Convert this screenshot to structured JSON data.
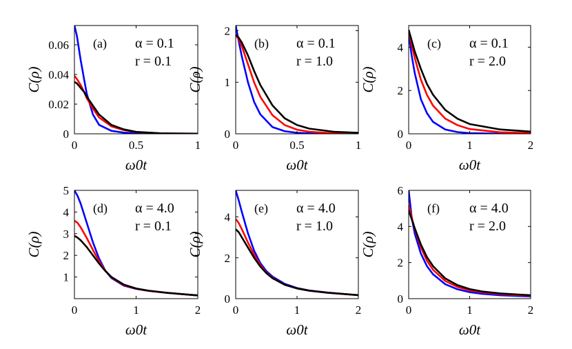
{
  "chart_data": [
    {
      "panel": "(a)",
      "type": "line",
      "params": [
        "α = 0.1",
        "r = 0.1"
      ],
      "xlabel": "ω0t",
      "ylabel": "C(ρ)",
      "xlim": [
        0,
        1
      ],
      "ylim": [
        0,
        0.073
      ],
      "xticks": [
        0,
        0.5,
        1
      ],
      "yticks": [
        0,
        0.02,
        0.04,
        0.06
      ],
      "series": [
        {
          "color": "#0000ff",
          "x": [
            0,
            0.02,
            0.05,
            0.08,
            0.1,
            0.15,
            0.2,
            0.3,
            0.4,
            0.5,
            0.7,
            1
          ],
          "y": [
            0.073,
            0.066,
            0.05,
            0.036,
            0.027,
            0.013,
            0.006,
            0.002,
            0.0008,
            0.0003,
            0.0001,
            0
          ]
        },
        {
          "color": "#ff0000",
          "x": [
            0,
            0.02,
            0.05,
            0.08,
            0.1,
            0.15,
            0.2,
            0.3,
            0.4,
            0.5,
            0.7,
            1
          ],
          "y": [
            0.039,
            0.037,
            0.033,
            0.028,
            0.024,
            0.017,
            0.011,
            0.005,
            0.0025,
            0.0012,
            0.0003,
            0.0001
          ]
        },
        {
          "color": "#000000",
          "x": [
            0,
            0.02,
            0.05,
            0.08,
            0.1,
            0.15,
            0.2,
            0.3,
            0.4,
            0.5,
            0.7,
            1
          ],
          "y": [
            0.035,
            0.034,
            0.031,
            0.028,
            0.025,
            0.019,
            0.013,
            0.006,
            0.003,
            0.0013,
            0.0003,
            0.0001
          ]
        }
      ]
    },
    {
      "panel": "(b)",
      "type": "line",
      "params": [
        "α = 0.1",
        "r = 1.0"
      ],
      "xlabel": "ω0t",
      "ylabel": "C(ρ)",
      "xlim": [
        0,
        1
      ],
      "ylim": [
        0,
        2.1
      ],
      "xticks": [
        0,
        0.5,
        1
      ],
      "yticks": [
        0,
        1,
        2
      ],
      "series": [
        {
          "color": "#0000ff",
          "x": [
            0,
            0.02,
            0.05,
            0.1,
            0.15,
            0.2,
            0.3,
            0.4,
            0.5,
            0.6,
            0.8,
            1
          ],
          "y": [
            2.1,
            1.85,
            1.5,
            1.0,
            0.62,
            0.38,
            0.13,
            0.05,
            0.02,
            0.01,
            0.003,
            0.001
          ]
        },
        {
          "color": "#ff0000",
          "x": [
            0,
            0.02,
            0.05,
            0.1,
            0.15,
            0.2,
            0.3,
            0.4,
            0.5,
            0.6,
            0.8,
            1
          ],
          "y": [
            1.92,
            1.85,
            1.7,
            1.35,
            1.0,
            0.72,
            0.36,
            0.17,
            0.08,
            0.04,
            0.01,
            0.003
          ]
        },
        {
          "color": "#000000",
          "x": [
            0,
            0.02,
            0.05,
            0.1,
            0.15,
            0.2,
            0.3,
            0.4,
            0.5,
            0.6,
            0.8,
            1
          ],
          "y": [
            1.92,
            1.88,
            1.77,
            1.52,
            1.22,
            0.95,
            0.55,
            0.3,
            0.17,
            0.1,
            0.04,
            0.02
          ]
        }
      ]
    },
    {
      "panel": "(c)",
      "type": "line",
      "params": [
        "α = 0.1",
        "r = 2.0"
      ],
      "xlabel": "ω0t",
      "ylabel": "C(ρ)",
      "xlim": [
        0,
        2
      ],
      "ylim": [
        0,
        5
      ],
      "xticks": [
        0,
        1,
        2
      ],
      "yticks": [
        0,
        2,
        4
      ],
      "series": [
        {
          "color": "#0000ff",
          "x": [
            0,
            0.05,
            0.1,
            0.2,
            0.3,
            0.4,
            0.6,
            0.8,
            1,
            1.5,
            2
          ],
          "y": [
            4.6,
            3.6,
            2.8,
            1.6,
            0.95,
            0.55,
            0.2,
            0.08,
            0.03,
            0.005,
            0.001
          ]
        },
        {
          "color": "#ff0000",
          "x": [
            0,
            0.05,
            0.1,
            0.2,
            0.3,
            0.4,
            0.6,
            0.8,
            1,
            1.5,
            2
          ],
          "y": [
            4.8,
            4.1,
            3.5,
            2.5,
            1.8,
            1.3,
            0.7,
            0.4,
            0.22,
            0.07,
            0.03
          ]
        },
        {
          "color": "#000000",
          "x": [
            0,
            0.05,
            0.1,
            0.2,
            0.3,
            0.4,
            0.6,
            0.8,
            1,
            1.5,
            2
          ],
          "y": [
            4.8,
            4.3,
            3.8,
            3.0,
            2.3,
            1.8,
            1.1,
            0.7,
            0.45,
            0.2,
            0.1
          ]
        }
      ]
    },
    {
      "panel": "(d)",
      "type": "line",
      "params": [
        "α = 4.0",
        "r = 0.1"
      ],
      "xlabel": "ω0t",
      "ylabel": "C(ρ)",
      "xlim": [
        0,
        2
      ],
      "ylim": [
        0,
        5
      ],
      "xticks": [
        0,
        1,
        2
      ],
      "yticks": [
        1,
        2,
        3,
        4,
        5
      ],
      "series": [
        {
          "color": "#0000ff",
          "x": [
            0,
            0.05,
            0.1,
            0.2,
            0.3,
            0.4,
            0.5,
            0.6,
            0.8,
            1,
            1.2,
            1.5,
            2
          ],
          "y": [
            5.0,
            4.75,
            4.4,
            3.5,
            2.6,
            1.85,
            1.3,
            0.95,
            0.6,
            0.45,
            0.36,
            0.27,
            0.15
          ]
        },
        {
          "color": "#ff0000",
          "x": [
            0,
            0.05,
            0.1,
            0.2,
            0.3,
            0.4,
            0.5,
            0.6,
            0.8,
            1,
            1.2,
            1.5,
            2
          ],
          "y": [
            3.6,
            3.5,
            3.3,
            2.8,
            2.25,
            1.72,
            1.3,
            0.98,
            0.62,
            0.46,
            0.36,
            0.27,
            0.15
          ]
        },
        {
          "color": "#000000",
          "x": [
            0,
            0.05,
            0.1,
            0.2,
            0.3,
            0.4,
            0.5,
            0.6,
            0.8,
            1,
            1.2,
            1.5,
            2
          ],
          "y": [
            2.9,
            2.82,
            2.7,
            2.38,
            2.0,
            1.62,
            1.28,
            1.0,
            0.65,
            0.47,
            0.37,
            0.27,
            0.15
          ]
        }
      ]
    },
    {
      "panel": "(e)",
      "type": "line",
      "params": [
        "α = 4.0",
        "r = 1.0"
      ],
      "xlabel": "ω0t",
      "ylabel": "C(ρ)",
      "xlim": [
        0,
        2
      ],
      "ylim": [
        0,
        5.3
      ],
      "xticks": [
        0,
        1,
        2
      ],
      "yticks": [
        0,
        2,
        4
      ],
      "series": [
        {
          "color": "#0000ff",
          "x": [
            0,
            0.05,
            0.1,
            0.2,
            0.3,
            0.4,
            0.5,
            0.6,
            0.8,
            1,
            1.2,
            1.5,
            2
          ],
          "y": [
            5.3,
            4.8,
            4.25,
            3.2,
            2.35,
            1.75,
            1.35,
            1.08,
            0.72,
            0.52,
            0.4,
            0.3,
            0.17
          ]
        },
        {
          "color": "#ff0000",
          "x": [
            0,
            0.05,
            0.1,
            0.2,
            0.3,
            0.4,
            0.5,
            0.6,
            0.8,
            1,
            1.2,
            1.5,
            2
          ],
          "y": [
            3.9,
            3.7,
            3.4,
            2.75,
            2.15,
            1.65,
            1.28,
            1.02,
            0.68,
            0.5,
            0.39,
            0.29,
            0.17
          ]
        },
        {
          "color": "#000000",
          "x": [
            0,
            0.05,
            0.1,
            0.2,
            0.3,
            0.4,
            0.5,
            0.6,
            0.8,
            1,
            1.2,
            1.5,
            2
          ],
          "y": [
            3.4,
            3.25,
            3.0,
            2.5,
            2.0,
            1.58,
            1.25,
            1.0,
            0.68,
            0.5,
            0.39,
            0.29,
            0.17
          ]
        }
      ]
    },
    {
      "panel": "(f)",
      "type": "line",
      "params": [
        "α = 4.0",
        "r = 2.0"
      ],
      "xlabel": "ω0t",
      "ylabel": "C(ρ)",
      "xlim": [
        0,
        2
      ],
      "ylim": [
        0,
        6
      ],
      "xticks": [
        0,
        1,
        2
      ],
      "yticks": [
        0,
        2,
        4,
        6
      ],
      "series": [
        {
          "color": "#0000ff",
          "x": [
            0,
            0.05,
            0.1,
            0.2,
            0.3,
            0.4,
            0.6,
            0.8,
            1,
            1.2,
            1.5,
            2
          ],
          "y": [
            6.0,
            4.5,
            3.6,
            2.5,
            1.8,
            1.35,
            0.8,
            0.52,
            0.36,
            0.27,
            0.19,
            0.12
          ]
        },
        {
          "color": "#ff0000",
          "x": [
            0,
            0.05,
            0.1,
            0.2,
            0.3,
            0.4,
            0.6,
            0.8,
            1,
            1.2,
            1.5,
            2
          ],
          "y": [
            5.2,
            4.5,
            3.85,
            2.85,
            2.1,
            1.6,
            0.98,
            0.65,
            0.46,
            0.35,
            0.25,
            0.16
          ]
        },
        {
          "color": "#000000",
          "x": [
            0,
            0.05,
            0.1,
            0.2,
            0.3,
            0.4,
            0.6,
            0.8,
            1,
            1.2,
            1.5,
            2
          ],
          "y": [
            4.9,
            4.4,
            3.9,
            3.0,
            2.3,
            1.8,
            1.12,
            0.75,
            0.53,
            0.4,
            0.29,
            0.19
          ]
        }
      ]
    }
  ]
}
